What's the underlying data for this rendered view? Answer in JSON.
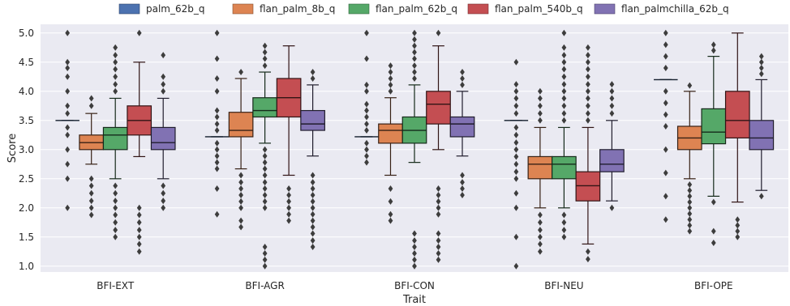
{
  "chart_data": {
    "type": "box",
    "xlabel": "Trait",
    "ylabel": "Score",
    "ylim": [
      0.9,
      5.15
    ],
    "yticks": [
      "1.0",
      "1.5",
      "2.0",
      "2.5",
      "3.0",
      "3.5",
      "4.0",
      "4.5",
      "5.0"
    ],
    "categories": [
      "BFI-EXT",
      "BFI-AGR",
      "BFI-CON",
      "BFI-NEU",
      "BFI-OPE"
    ],
    "legend_position": "top",
    "grid": true,
    "background": "#eaeaf2",
    "series": [
      {
        "name": "palm_62b_q",
        "color": "#4c72b0",
        "boxes": [
          {
            "q1": 3.5,
            "median": 3.5,
            "q3": 3.5,
            "whisker_low": 3.5,
            "whisker_high": 3.5,
            "outliers": [
              2.0,
              2.5,
              2.75,
              3.0,
              3.25,
              3.38,
              3.62,
              3.75,
              4.0,
              4.25,
              4.4,
              4.5,
              5.0
            ]
          },
          {
            "q1": 3.22,
            "median": 3.22,
            "q3": 3.22,
            "whisker_low": 3.22,
            "whisker_high": 3.22,
            "outliers": [
              1.89,
              2.33,
              2.67,
              2.78,
              2.89,
              3.0,
              3.11,
              3.33,
              3.44,
              3.56,
              3.67,
              4.0,
              4.22,
              4.56,
              5.0
            ]
          },
          {
            "q1": 3.22,
            "median": 3.22,
            "q3": 3.22,
            "whisker_low": 3.22,
            "whisker_high": 3.22,
            "outliers": [
              2.78,
              2.89,
              3.0,
              3.11,
              3.33,
              3.44,
              3.56,
              3.67,
              3.78,
              4.0,
              4.11,
              4.56,
              5.0
            ]
          },
          {
            "q1": 3.5,
            "median": 3.5,
            "q3": 3.5,
            "whisker_low": 3.5,
            "whisker_high": 3.5,
            "outliers": [
              1.0,
              1.5,
              2.0,
              2.25,
              2.5,
              2.62,
              2.75,
              2.88,
              3.0,
              3.12,
              3.25,
              3.38,
              3.62,
              3.75,
              3.88,
              4.0,
              4.12,
              4.5
            ]
          },
          {
            "q1": 4.2,
            "median": 4.2,
            "q3": 4.2,
            "whisker_low": 4.2,
            "whisker_high": 4.2,
            "outliers": [
              1.8,
              2.2,
              2.6,
              3.0,
              3.4,
              3.6,
              3.8,
              4.0,
              4.4,
              4.6,
              4.8,
              5.0
            ]
          }
        ]
      },
      {
        "name": "flan_palm_8b_q",
        "color": "#dd8452",
        "boxes": [
          {
            "q1": 3.0,
            "median": 3.12,
            "q3": 3.25,
            "whisker_low": 2.75,
            "whisker_high": 3.62,
            "outliers": [
              1.88,
              2.0,
              2.12,
              2.25,
              2.38,
              2.5,
              3.75,
              3.88
            ]
          },
          {
            "q1": 3.22,
            "median": 3.33,
            "q3": 3.64,
            "whisker_low": 2.67,
            "whisker_high": 4.22,
            "outliers": [
              1.67,
              1.78,
              2.0,
              2.11,
              2.22,
              2.33,
              2.44,
              2.56,
              4.33
            ]
          },
          {
            "q1": 3.11,
            "median": 3.33,
            "q3": 3.44,
            "whisker_low": 2.56,
            "whisker_high": 3.89,
            "outliers": [
              1.78,
              1.89,
              2.11,
              2.33,
              4.0,
              4.11,
              4.22,
              4.33,
              4.44
            ]
          },
          {
            "q1": 2.5,
            "median": 2.75,
            "q3": 2.88,
            "whisker_low": 2.0,
            "whisker_high": 3.38,
            "outliers": [
              1.25,
              1.38,
              1.5,
              1.62,
              1.75,
              1.88,
              3.5,
              3.62,
              3.75,
              3.88,
              4.0
            ]
          },
          {
            "q1": 3.0,
            "median": 3.2,
            "q3": 3.4,
            "whisker_low": 2.5,
            "whisker_high": 4.0,
            "outliers": [
              1.6,
              1.7,
              1.8,
              1.9,
              2.0,
              2.1,
              2.2,
              2.3,
              2.4,
              4.1
            ]
          }
        ]
      },
      {
        "name": "flan_palm_62b_q",
        "color": "#55a868",
        "boxes": [
          {
            "q1": 3.0,
            "median": 3.25,
            "q3": 3.38,
            "whisker_low": 2.5,
            "whisker_high": 3.88,
            "outliers": [
              1.5,
              1.62,
              1.75,
              1.88,
              2.0,
              2.12,
              2.25,
              2.38,
              4.0,
              4.12,
              4.25,
              4.38,
              4.5,
              4.62,
              4.75
            ]
          },
          {
            "q1": 3.56,
            "median": 3.67,
            "q3": 3.89,
            "whisker_low": 3.11,
            "whisker_high": 4.33,
            "outliers": [
              1.0,
              1.11,
              1.22,
              1.33,
              2.0,
              2.11,
              2.22,
              2.33,
              2.44,
              2.56,
              2.67,
              2.78,
              2.89,
              3.0,
              4.44,
              4.56,
              4.67,
              4.78
            ]
          },
          {
            "q1": 3.11,
            "median": 3.33,
            "q3": 3.56,
            "whisker_low": 2.78,
            "whisker_high": 4.11,
            "outliers": [
              1.0,
              1.11,
              1.22,
              1.33,
              1.44,
              1.56,
              4.22,
              4.33,
              4.44,
              4.56,
              4.67,
              4.78,
              4.89,
              5.0
            ]
          },
          {
            "q1": 2.5,
            "median": 2.75,
            "q3": 2.88,
            "whisker_low": 2.0,
            "whisker_high": 3.38,
            "outliers": [
              1.5,
              1.62,
              1.75,
              1.88,
              3.5,
              3.62,
              3.75,
              3.88,
              4.0,
              4.12,
              4.25,
              4.38,
              4.5,
              4.62,
              4.75,
              5.0
            ]
          },
          {
            "q1": 3.1,
            "median": 3.3,
            "q3": 3.7,
            "whisker_low": 2.2,
            "whisker_high": 4.6,
            "outliers": [
              1.4,
              1.6,
              2.1,
              4.7,
              4.8
            ]
          }
        ]
      },
      {
        "name": "flan_palm_540b_q",
        "color": "#c44e52",
        "boxes": [
          {
            "q1": 3.25,
            "median": 3.5,
            "q3": 3.75,
            "whisker_low": 2.88,
            "whisker_high": 4.5,
            "outliers": [
              1.25,
              1.38,
              1.5,
              1.62,
              1.75,
              1.88,
              2.0,
              5.0
            ]
          },
          {
            "q1": 3.56,
            "median": 3.89,
            "q3": 4.22,
            "whisker_low": 2.56,
            "whisker_high": 4.78,
            "outliers": [
              1.78,
              1.89,
              2.0,
              2.11,
              2.22,
              2.33
            ]
          },
          {
            "q1": 3.44,
            "median": 3.78,
            "q3": 4.0,
            "whisker_low": 3.0,
            "whisker_high": 4.78,
            "outliers": [
              1.11,
              1.22,
              1.33,
              1.44,
              1.56,
              1.89,
              2.0,
              2.11,
              2.22,
              2.33,
              5.0
            ]
          },
          {
            "q1": 2.12,
            "median": 2.38,
            "q3": 2.62,
            "whisker_low": 1.38,
            "whisker_high": 3.38,
            "outliers": [
              1.12,
              1.25,
              3.5,
              3.62,
              3.75,
              3.88,
              4.0,
              4.12,
              4.25,
              4.38,
              4.5,
              4.62,
              4.75
            ]
          },
          {
            "q1": 3.2,
            "median": 3.5,
            "q3": 4.0,
            "whisker_low": 2.1,
            "whisker_high": 5.0,
            "outliers": [
              1.5,
              1.6,
              1.7,
              1.8
            ]
          }
        ]
      },
      {
        "name": "flan_palmchilla_62b_q",
        "color": "#8172b3",
        "boxes": [
          {
            "q1": 3.0,
            "median": 3.12,
            "q3": 3.38,
            "whisker_low": 2.5,
            "whisker_high": 3.88,
            "outliers": [
              2.0,
              2.12,
              2.25,
              2.38,
              4.0,
              4.12,
              4.25,
              4.62
            ]
          },
          {
            "q1": 3.33,
            "median": 3.44,
            "q3": 3.67,
            "whisker_low": 2.89,
            "whisker_high": 4.11,
            "outliers": [
              1.33,
              1.44,
              1.56,
              1.67,
              1.78,
              1.89,
              2.0,
              2.11,
              2.22,
              2.33,
              2.44,
              2.56,
              4.22,
              4.33
            ]
          },
          {
            "q1": 3.22,
            "median": 3.44,
            "q3": 3.56,
            "whisker_low": 2.89,
            "whisker_high": 4.0,
            "outliers": [
              2.22,
              2.33,
              2.44,
              2.56,
              4.11,
              4.22,
              4.33
            ]
          },
          {
            "q1": 2.62,
            "median": 2.75,
            "q3": 3.0,
            "whisker_low": 2.12,
            "whisker_high": 3.5,
            "outliers": [
              2.0,
              3.62,
              3.75,
              3.88,
              4.0,
              4.12
            ]
          },
          {
            "q1": 3.0,
            "median": 3.2,
            "q3": 3.5,
            "whisker_low": 2.3,
            "whisker_high": 4.2,
            "outliers": [
              2.2,
              4.3,
              4.4,
              4.5,
              4.6
            ]
          }
        ]
      }
    ]
  }
}
